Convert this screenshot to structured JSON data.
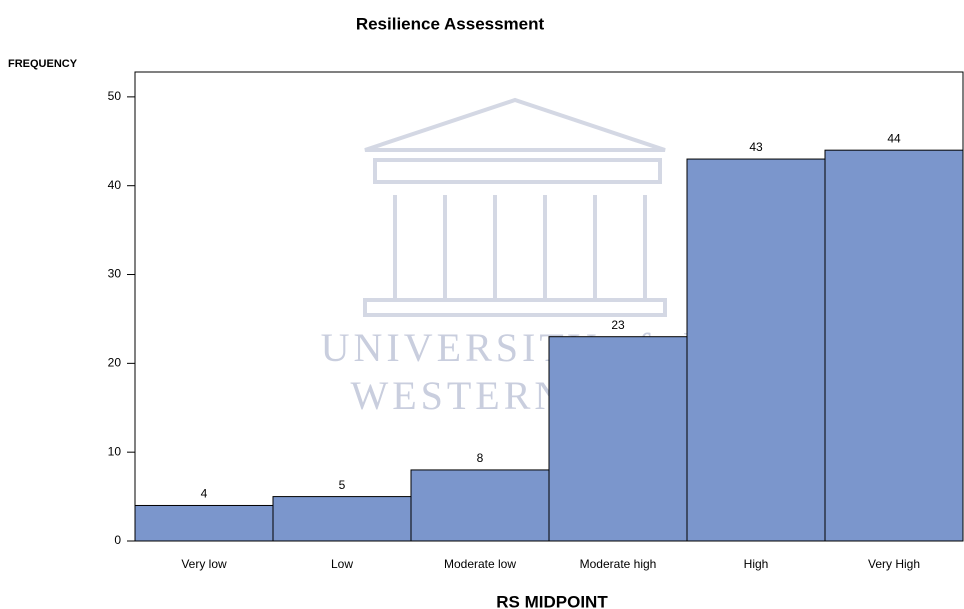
{
  "chart_data": {
    "type": "bar",
    "title": "Resilience Assessment",
    "y_label": "FREQUENCY",
    "x_label": "RS MIDPOINT",
    "categories": [
      "Very low",
      "Low",
      "Moderate low",
      "Moderate high",
      "High",
      "Very High"
    ],
    "values": [
      4,
      5,
      8,
      23,
      43,
      44
    ],
    "color": "#7b96cc",
    "ylim": [
      0,
      52.8
    ],
    "yticks": [
      0,
      10,
      20,
      30,
      40,
      50
    ],
    "grid": false,
    "watermark": [
      "UNIVERSITY of the",
      "WESTERN CAPE"
    ]
  }
}
